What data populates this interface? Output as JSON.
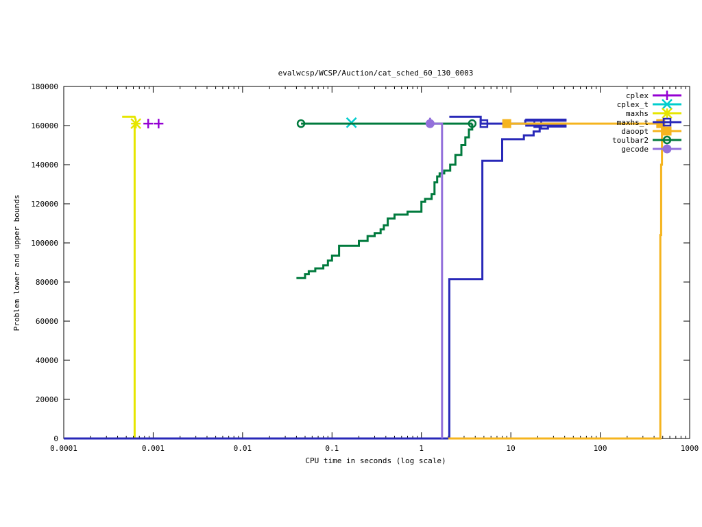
{
  "chart_data": {
    "type": "line",
    "title": "evalwcsp/WCSP/Auction/cat_sched_60_130_0003",
    "xlabel": "CPU time in seconds (log scale)",
    "ylabel": "Problem lower and upper bounds",
    "x_scale": "log",
    "xlim": [
      0.0001,
      1000
    ],
    "ylim": [
      0,
      180000
    ],
    "x_ticks": [
      0.0001,
      0.001,
      0.01,
      0.1,
      1,
      10,
      100,
      1000
    ],
    "x_tick_labels": [
      "0.0001",
      "0.001",
      "0.01",
      "0.1",
      "1",
      "10",
      "100",
      "1000"
    ],
    "y_ticks": [
      0,
      20000,
      40000,
      60000,
      80000,
      100000,
      120000,
      140000,
      160000,
      180000
    ],
    "y_tick_labels": [
      "0",
      "20000",
      "40000",
      "60000",
      "80000",
      "100000",
      "120000",
      "140000",
      "160000",
      "180000"
    ],
    "grid": false,
    "legend_position": "top-right",
    "series": [
      {
        "name": "cplex",
        "color": "#9400d3",
        "marker": "plus",
        "lines": [],
        "points": [
          [
            0.00088,
            161000
          ],
          [
            0.00115,
            161000
          ]
        ]
      },
      {
        "name": "cplex_t",
        "color": "#00cdcd",
        "marker": "x",
        "lines": [],
        "points": [
          [
            0.165,
            161500
          ]
        ]
      },
      {
        "name": "maxhs",
        "color": "#e6e600",
        "marker": "star",
        "lines": [
          [
            [
              0.00045,
              164500
            ],
            [
              0.00062,
              164500
            ],
            [
              0.00063,
              163500
            ],
            [
              0.00064,
              163000
            ]
          ],
          [
            [
              0.00062,
              0
            ],
            [
              0.00062,
              161000
            ]
          ],
          [
            [
              0.0001,
              0
            ],
            [
              0.00062,
              0
            ]
          ]
        ],
        "points": [
          [
            0.00064,
            161000
          ]
        ]
      },
      {
        "name": "maxhs_t",
        "color": "#2828b8",
        "marker": "box-open",
        "lines": [
          [
            [
              0.0001,
              0
            ],
            [
              2.05,
              0
            ],
            [
              2.05,
              81500
            ],
            [
              4.8,
              81500
            ],
            [
              4.8,
              142000
            ],
            [
              8.0,
              142000
            ],
            [
              8.0,
              153000
            ],
            [
              14,
              153000
            ],
            [
              14,
              155000
            ],
            [
              18,
              155000
            ],
            [
              18,
              157000
            ],
            [
              21,
              157000
            ],
            [
              21,
              158500
            ],
            [
              26,
              158500
            ],
            [
              26,
              159500
            ],
            [
              42,
              159500
            ]
          ],
          [
            [
              2.05,
              164500
            ],
            [
              4.6,
              164500
            ],
            [
              4.6,
              161000
            ],
            [
              42,
              161000
            ]
          ],
          [
            [
              14.5,
              162500
            ],
            [
              42,
              162500
            ]
          ],
          [
            [
              14.5,
              163000
            ],
            [
              42,
              163000
            ]
          ],
          [
            [
              14.5,
              160000
            ],
            [
              42,
              160000
            ]
          ],
          [
            [
              14.5,
              161000
            ],
            [
              14.5,
              163000
            ]
          ]
        ],
        "points": [
          [
            5.0,
            161000
          ],
          [
            20.0,
            161000
          ]
        ]
      },
      {
        "name": "daoopt",
        "color": "#f5b41e",
        "marker": "box-filled",
        "lines": [
          [
            [
              2.0,
              0
            ],
            [
              470,
              0
            ],
            [
              470,
              104000
            ],
            [
              480,
              104000
            ],
            [
              480,
              140000
            ],
            [
              490,
              140000
            ],
            [
              490,
              161000
            ]
          ],
          [
            [
              9.0,
              161000
            ],
            [
              490,
              161000
            ]
          ]
        ],
        "points": [
          [
            9.0,
            161000
          ],
          [
            475,
            161000
          ]
        ]
      },
      {
        "name": "toulbar2",
        "color": "#007a3d",
        "marker": "circle-open",
        "lines": [
          [
            [
              0.045,
              161000
            ],
            [
              3.7,
              161000
            ]
          ],
          [
            [
              0.04,
              82000
            ],
            [
              0.05,
              82000
            ],
            [
              0.05,
              84000
            ],
            [
              0.055,
              84000
            ],
            [
              0.055,
              85500
            ],
            [
              0.065,
              85500
            ],
            [
              0.065,
              87000
            ],
            [
              0.08,
              87000
            ],
            [
              0.08,
              88500
            ],
            [
              0.09,
              88500
            ],
            [
              0.09,
              91000
            ],
            [
              0.1,
              91000
            ],
            [
              0.1,
              93500
            ],
            [
              0.12,
              93500
            ],
            [
              0.12,
              98500
            ],
            [
              0.2,
              98500
            ],
            [
              0.2,
              101000
            ],
            [
              0.25,
              101000
            ],
            [
              0.25,
              103500
            ],
            [
              0.3,
              103500
            ],
            [
              0.3,
              105000
            ],
            [
              0.35,
              105000
            ],
            [
              0.35,
              107000
            ],
            [
              0.38,
              107000
            ],
            [
              0.38,
              109000
            ],
            [
              0.42,
              109000
            ],
            [
              0.42,
              112500
            ],
            [
              0.5,
              112500
            ],
            [
              0.5,
              114500
            ],
            [
              0.7,
              114500
            ],
            [
              0.7,
              116000
            ],
            [
              1.0,
              116000
            ],
            [
              1.0,
              121000
            ],
            [
              1.1,
              121000
            ],
            [
              1.1,
              122500
            ],
            [
              1.3,
              122500
            ],
            [
              1.3,
              125000
            ],
            [
              1.4,
              125000
            ],
            [
              1.4,
              131000
            ],
            [
              1.5,
              131000
            ],
            [
              1.5,
              134000
            ],
            [
              1.6,
              134000
            ],
            [
              1.6,
              135500
            ],
            [
              1.8,
              135500
            ],
            [
              1.8,
              137000
            ],
            [
              2.1,
              137000
            ],
            [
              2.1,
              140000
            ],
            [
              2.4,
              140000
            ],
            [
              2.4,
              145000
            ],
            [
              2.8,
              145000
            ],
            [
              2.8,
              150000
            ],
            [
              3.1,
              150000
            ],
            [
              3.1,
              154000
            ],
            [
              3.4,
              154000
            ],
            [
              3.4,
              158000
            ],
            [
              3.7,
              158000
            ],
            [
              3.7,
              161000
            ]
          ]
        ],
        "points": [
          [
            0.045,
            161000
          ],
          [
            3.7,
            161000
          ]
        ]
      },
      {
        "name": "gecode",
        "color": "#9370db",
        "marker": "circle-filled",
        "lines": [
          [
            [
              1.25,
              164000
            ],
            [
              1.25,
              161000
            ],
            [
              1.7,
              161000
            ],
            [
              1.7,
              0
            ]
          ]
        ],
        "points": [
          [
            1.25,
            161000
          ]
        ]
      }
    ]
  }
}
